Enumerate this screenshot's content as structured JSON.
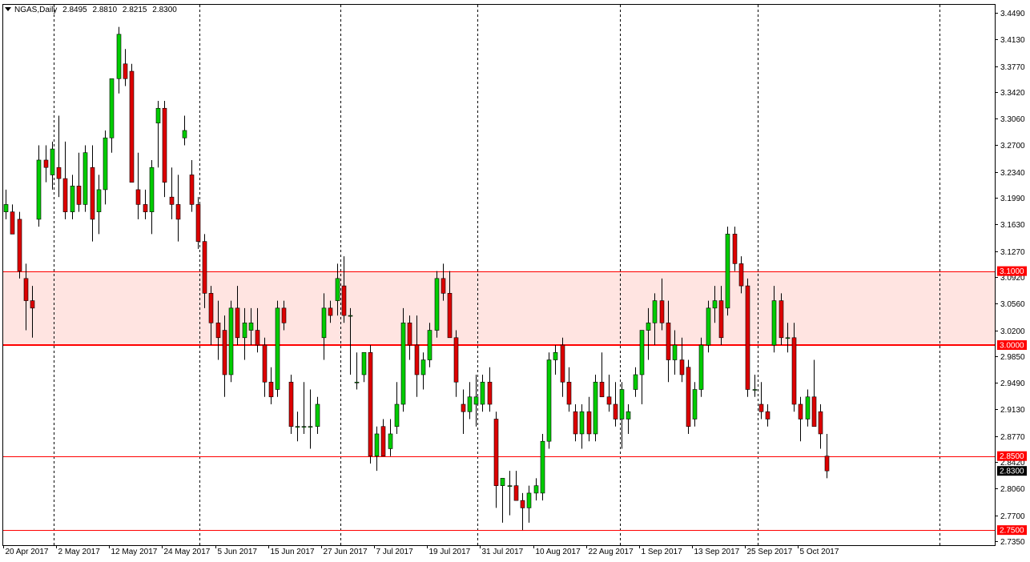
{
  "window": {
    "symbol": "NGAS",
    "timeframe": "Daily",
    "ohlc": {
      "open": "2.8495",
      "high": "2.8810",
      "low": "2.8215",
      "close": "2.8300"
    }
  },
  "colors": {
    "background": "#ffffff",
    "frame": "#000000",
    "bull_body": "#00cc00",
    "bear_body": "#dd0000",
    "wick": "#000000",
    "level_line": "#ff0000",
    "zone_fill": "#ffe4e1",
    "price_tag_text": "#ffffff",
    "current_price_tag": "#000000"
  },
  "chart_data": {
    "type": "candlestick",
    "instrument": "NGAS",
    "period": "Daily",
    "ylim": [
      2.735,
      3.449
    ],
    "y_ticks": [
      "3.4490",
      "3.4130",
      "3.3770",
      "3.3420",
      "3.3060",
      "3.2700",
      "3.2340",
      "3.1990",
      "3.1630",
      "3.1270",
      "3.0920",
      "3.0560",
      "3.0200",
      "2.9850",
      "2.9490",
      "2.9130",
      "2.8770",
      "2.8420",
      "2.8060",
      "2.7700",
      "2.7350"
    ],
    "x_labels": [
      {
        "label": "20 Apr 2017",
        "bar": 0
      },
      {
        "label": "2 May 2017",
        "bar": 8
      },
      {
        "label": "12 May 2017",
        "bar": 16
      },
      {
        "label": "24 May 2017",
        "bar": 24
      },
      {
        "label": "5 Jun 2017",
        "bar": 32
      },
      {
        "label": "15 Jun 2017",
        "bar": 40
      },
      {
        "label": "27 Jun 2017",
        "bar": 48
      },
      {
        "label": "7 Jul 2017",
        "bar": 56
      },
      {
        "label": "19 Jul 2017",
        "bar": 64
      },
      {
        "label": "31 Jul 2017",
        "bar": 72
      },
      {
        "label": "10 Aug 2017",
        "bar": 80
      },
      {
        "label": "22 Aug 2017",
        "bar": 88
      },
      {
        "label": "1 Sep 2017",
        "bar": 96
      },
      {
        "label": "13 Sep 2017",
        "bar": 104
      },
      {
        "label": "25 Sep 2017",
        "bar": 112
      },
      {
        "label": "5 Oct 2017",
        "bar": 120
      }
    ],
    "vertical_dashed_lines_at_bar": [
      7.2,
      29.3,
      50.6,
      71.2,
      92.8,
      113.6,
      141.0
    ],
    "zone": {
      "from": 3.0,
      "to": 3.1
    },
    "levels": [
      {
        "value": 3.1,
        "label": "3.1000",
        "width": 1
      },
      {
        "value": 3.0,
        "label": "3.0000",
        "width": 2
      },
      {
        "value": 2.85,
        "label": "2.8500",
        "width": 1
      },
      {
        "value": 2.75,
        "label": "2.7500",
        "width": 1
      }
    ],
    "current_price": {
      "value": 2.83,
      "label": "2.8300"
    },
    "candles": [
      {
        "o": 3.18,
        "h": 3.21,
        "l": 3.17,
        "c": 3.19
      },
      {
        "o": 3.18,
        "h": 3.19,
        "l": 3.15,
        "c": 3.15
      },
      {
        "o": 3.17,
        "h": 3.18,
        "l": 3.09,
        "c": 3.1
      },
      {
        "o": 3.09,
        "h": 3.11,
        "l": 3.02,
        "c": 3.06
      },
      {
        "o": 3.06,
        "h": 3.08,
        "l": 3.01,
        "c": 3.05
      },
      {
        "o": 3.17,
        "h": 3.27,
        "l": 3.16,
        "c": 3.25
      },
      {
        "o": 3.25,
        "h": 3.27,
        "l": 3.22,
        "c": 3.24
      },
      {
        "o": 3.23,
        "h": 3.275,
        "l": 3.21,
        "c": 3.265
      },
      {
        "o": 3.24,
        "h": 3.31,
        "l": 3.2,
        "c": 3.225
      },
      {
        "o": 3.225,
        "h": 3.275,
        "l": 3.17,
        "c": 3.18
      },
      {
        "o": 3.18,
        "h": 3.23,
        "l": 3.17,
        "c": 3.215
      },
      {
        "o": 3.215,
        "h": 3.26,
        "l": 3.18,
        "c": 3.19
      },
      {
        "o": 3.19,
        "h": 3.27,
        "l": 3.18,
        "c": 3.26
      },
      {
        "o": 3.24,
        "h": 3.27,
        "l": 3.14,
        "c": 3.17
      },
      {
        "o": 3.18,
        "h": 3.23,
        "l": 3.15,
        "c": 3.21
      },
      {
        "o": 3.21,
        "h": 3.29,
        "l": 3.19,
        "c": 3.28
      },
      {
        "o": 3.28,
        "h": 3.36,
        "l": 3.26,
        "c": 3.36
      },
      {
        "o": 3.36,
        "h": 3.43,
        "l": 3.34,
        "c": 3.42
      },
      {
        "o": 3.38,
        "h": 3.4,
        "l": 3.35,
        "c": 3.36
      },
      {
        "o": 3.37,
        "h": 3.38,
        "l": 3.22,
        "c": 3.22
      },
      {
        "o": 3.21,
        "h": 3.26,
        "l": 3.17,
        "c": 3.19
      },
      {
        "o": 3.19,
        "h": 3.21,
        "l": 3.17,
        "c": 3.18
      },
      {
        "o": 3.18,
        "h": 3.25,
        "l": 3.15,
        "c": 3.24
      },
      {
        "o": 3.3,
        "h": 3.33,
        "l": 3.24,
        "c": 3.32
      },
      {
        "o": 3.32,
        "h": 3.33,
        "l": 3.2,
        "c": 3.22
      },
      {
        "o": 3.2,
        "h": 3.24,
        "l": 3.17,
        "c": 3.19
      },
      {
        "o": 3.19,
        "h": 3.23,
        "l": 3.14,
        "c": 3.17
      },
      {
        "o": 3.28,
        "h": 3.31,
        "l": 3.27,
        "c": 3.29
      },
      {
        "o": 3.23,
        "h": 3.25,
        "l": 3.18,
        "c": 3.19
      },
      {
        "o": 3.19,
        "h": 3.2,
        "l": 3.13,
        "c": 3.14
      },
      {
        "o": 3.14,
        "h": 3.15,
        "l": 3.05,
        "c": 3.07
      },
      {
        "o": 3.07,
        "h": 3.08,
        "l": 3.0,
        "c": 3.03
      },
      {
        "o": 3.03,
        "h": 3.06,
        "l": 2.98,
        "c": 3.01
      },
      {
        "o": 3.02,
        "h": 3.04,
        "l": 2.93,
        "c": 2.96
      },
      {
        "o": 2.96,
        "h": 3.06,
        "l": 2.95,
        "c": 3.05
      },
      {
        "o": 3.05,
        "h": 3.08,
        "l": 3.0,
        "c": 3.01
      },
      {
        "o": 3.01,
        "h": 3.05,
        "l": 2.98,
        "c": 3.03
      },
      {
        "o": 3.02,
        "h": 3.05,
        "l": 3.0,
        "c": 3.03
      },
      {
        "o": 3.02,
        "h": 3.05,
        "l": 2.99,
        "c": 3.0
      },
      {
        "o": 3.0,
        "h": 3.01,
        "l": 2.93,
        "c": 2.95
      },
      {
        "o": 2.95,
        "h": 2.97,
        "l": 2.92,
        "c": 2.93
      },
      {
        "o": 2.94,
        "h": 3.06,
        "l": 2.93,
        "c": 3.05
      },
      {
        "o": 3.05,
        "h": 3.06,
        "l": 3.02,
        "c": 3.03
      },
      {
        "o": 2.95,
        "h": 2.96,
        "l": 2.88,
        "c": 2.89
      },
      {
        "o": 2.89,
        "h": 2.91,
        "l": 2.87,
        "c": 2.89
      },
      {
        "o": 2.89,
        "h": 2.95,
        "l": 2.88,
        "c": 2.89
      },
      {
        "o": 2.89,
        "h": 2.94,
        "l": 2.86,
        "c": 2.89
      },
      {
        "o": 2.89,
        "h": 2.93,
        "l": 2.88,
        "c": 2.92
      },
      {
        "o": 3.01,
        "h": 3.07,
        "l": 2.98,
        "c": 3.05
      },
      {
        "o": 3.05,
        "h": 3.06,
        "l": 3.03,
        "c": 3.04
      },
      {
        "o": 3.06,
        "h": 3.11,
        "l": 3.04,
        "c": 3.09
      },
      {
        "o": 3.08,
        "h": 3.12,
        "l": 3.03,
        "c": 3.04
      },
      {
        "o": 3.04,
        "h": 3.05,
        "l": 2.96,
        "c": 3.04
      },
      {
        "o": 2.95,
        "h": 2.99,
        "l": 2.94,
        "c": 2.95
      },
      {
        "o": 2.96,
        "h": 2.99,
        "l": 2.95,
        "c": 2.99
      },
      {
        "o": 2.99,
        "h": 3.0,
        "l": 2.84,
        "c": 2.85
      },
      {
        "o": 2.85,
        "h": 2.89,
        "l": 2.83,
        "c": 2.88
      },
      {
        "o": 2.89,
        "h": 2.9,
        "l": 2.85,
        "c": 2.85
      },
      {
        "o": 2.86,
        "h": 2.9,
        "l": 2.85,
        "c": 2.88
      },
      {
        "o": 2.89,
        "h": 2.95,
        "l": 2.88,
        "c": 2.92
      },
      {
        "o": 2.92,
        "h": 3.05,
        "l": 2.91,
        "c": 3.03
      },
      {
        "o": 3.03,
        "h": 3.04,
        "l": 2.98,
        "c": 3.0
      },
      {
        "o": 3.0,
        "h": 3.04,
        "l": 2.93,
        "c": 2.96
      },
      {
        "o": 2.96,
        "h": 2.99,
        "l": 2.94,
        "c": 2.98
      },
      {
        "o": 2.98,
        "h": 3.03,
        "l": 2.97,
        "c": 3.02
      },
      {
        "o": 3.02,
        "h": 3.1,
        "l": 3.01,
        "c": 3.09
      },
      {
        "o": 3.09,
        "h": 3.11,
        "l": 3.06,
        "c": 3.07
      },
      {
        "o": 3.07,
        "h": 3.1,
        "l": 3.01,
        "c": 3.01
      },
      {
        "o": 3.01,
        "h": 3.02,
        "l": 2.93,
        "c": 2.95
      },
      {
        "o": 2.92,
        "h": 2.94,
        "l": 2.88,
        "c": 2.91
      },
      {
        "o": 2.91,
        "h": 2.95,
        "l": 2.9,
        "c": 2.93
      },
      {
        "o": 2.92,
        "h": 2.96,
        "l": 2.89,
        "c": 2.93
      },
      {
        "o": 2.92,
        "h": 2.96,
        "l": 2.91,
        "c": 2.95
      },
      {
        "o": 2.95,
        "h": 2.97,
        "l": 2.91,
        "c": 2.92
      },
      {
        "o": 2.9,
        "h": 2.91,
        "l": 2.78,
        "c": 2.81
      },
      {
        "o": 2.81,
        "h": 2.82,
        "l": 2.76,
        "c": 2.82
      },
      {
        "o": 2.81,
        "h": 2.83,
        "l": 2.77,
        "c": 2.81
      },
      {
        "o": 2.81,
        "h": 2.83,
        "l": 2.79,
        "c": 2.79
      },
      {
        "o": 2.79,
        "h": 2.8,
        "l": 2.75,
        "c": 2.78
      },
      {
        "o": 2.78,
        "h": 2.81,
        "l": 2.76,
        "c": 2.8
      },
      {
        "o": 2.8,
        "h": 2.82,
        "l": 2.79,
        "c": 2.81
      },
      {
        "o": 2.8,
        "h": 2.88,
        "l": 2.79,
        "c": 2.87
      },
      {
        "o": 2.87,
        "h": 2.99,
        "l": 2.86,
        "c": 2.98
      },
      {
        "o": 2.98,
        "h": 3.0,
        "l": 2.96,
        "c": 2.99
      },
      {
        "o": 3.0,
        "h": 3.01,
        "l": 2.93,
        "c": 2.95
      },
      {
        "o": 2.95,
        "h": 2.97,
        "l": 2.91,
        "c": 2.92
      },
      {
        "o": 2.91,
        "h": 2.92,
        "l": 2.87,
        "c": 2.88
      },
      {
        "o": 2.88,
        "h": 2.92,
        "l": 2.86,
        "c": 2.91
      },
      {
        "o": 2.91,
        "h": 2.93,
        "l": 2.87,
        "c": 2.88
      },
      {
        "o": 2.88,
        "h": 2.96,
        "l": 2.87,
        "c": 2.95
      },
      {
        "o": 2.95,
        "h": 2.99,
        "l": 2.93,
        "c": 2.93
      },
      {
        "o": 2.93,
        "h": 2.96,
        "l": 2.91,
        "c": 2.92
      },
      {
        "o": 2.92,
        "h": 2.95,
        "l": 2.89,
        "c": 2.9
      },
      {
        "o": 2.9,
        "h": 2.95,
        "l": 2.86,
        "c": 2.94
      },
      {
        "o": 2.9,
        "h": 2.92,
        "l": 2.88,
        "c": 2.91
      },
      {
        "o": 2.94,
        "h": 2.97,
        "l": 2.93,
        "c": 2.96
      },
      {
        "o": 2.96,
        "h": 3.02,
        "l": 2.92,
        "c": 3.02
      },
      {
        "o": 3.02,
        "h": 3.05,
        "l": 2.98,
        "c": 3.03
      },
      {
        "o": 3.03,
        "h": 3.07,
        "l": 3.0,
        "c": 3.06
      },
      {
        "o": 3.06,
        "h": 3.09,
        "l": 3.02,
        "c": 3.03
      },
      {
        "o": 3.03,
        "h": 3.06,
        "l": 2.95,
        "c": 2.98
      },
      {
        "o": 2.98,
        "h": 3.02,
        "l": 2.96,
        "c": 3.0
      },
      {
        "o": 2.98,
        "h": 3.01,
        "l": 2.95,
        "c": 2.96
      },
      {
        "o": 2.97,
        "h": 2.98,
        "l": 2.88,
        "c": 2.89
      },
      {
        "o": 2.9,
        "h": 2.95,
        "l": 2.89,
        "c": 2.94
      },
      {
        "o": 2.94,
        "h": 3.01,
        "l": 2.93,
        "c": 3.0
      },
      {
        "o": 3.0,
        "h": 3.06,
        "l": 2.99,
        "c": 3.05
      },
      {
        "o": 3.05,
        "h": 3.08,
        "l": 3.03,
        "c": 3.06
      },
      {
        "o": 3.06,
        "h": 3.08,
        "l": 3.0,
        "c": 3.01
      },
      {
        "o": 3.05,
        "h": 3.16,
        "l": 3.04,
        "c": 3.15
      },
      {
        "o": 3.15,
        "h": 3.16,
        "l": 3.1,
        "c": 3.11
      },
      {
        "o": 3.11,
        "h": 3.12,
        "l": 3.07,
        "c": 3.08
      },
      {
        "o": 3.08,
        "h": 3.09,
        "l": 2.93,
        "c": 2.94
      },
      {
        "o": 2.94,
        "h": 2.96,
        "l": 2.93,
        "c": 2.94
      },
      {
        "o": 2.92,
        "h": 2.95,
        "l": 2.9,
        "c": 2.91
      },
      {
        "o": 2.91,
        "h": 2.92,
        "l": 2.89,
        "c": 2.9
      },
      {
        "o": 3.0,
        "h": 3.08,
        "l": 2.99,
        "c": 3.06
      },
      {
        "o": 3.06,
        "h": 3.07,
        "l": 3.0,
        "c": 3.01
      },
      {
        "o": 3.01,
        "h": 3.03,
        "l": 2.99,
        "c": 3.01
      },
      {
        "o": 3.01,
        "h": 3.03,
        "l": 2.91,
        "c": 2.92
      },
      {
        "o": 2.92,
        "h": 2.93,
        "l": 2.87,
        "c": 2.9
      },
      {
        "o": 2.9,
        "h": 2.94,
        "l": 2.89,
        "c": 2.93
      },
      {
        "o": 2.93,
        "h": 2.98,
        "l": 2.89,
        "c": 2.89
      },
      {
        "o": 2.91,
        "h": 2.92,
        "l": 2.86,
        "c": 2.88
      },
      {
        "o": 2.85,
        "h": 2.88,
        "l": 2.82,
        "c": 2.83
      }
    ]
  }
}
